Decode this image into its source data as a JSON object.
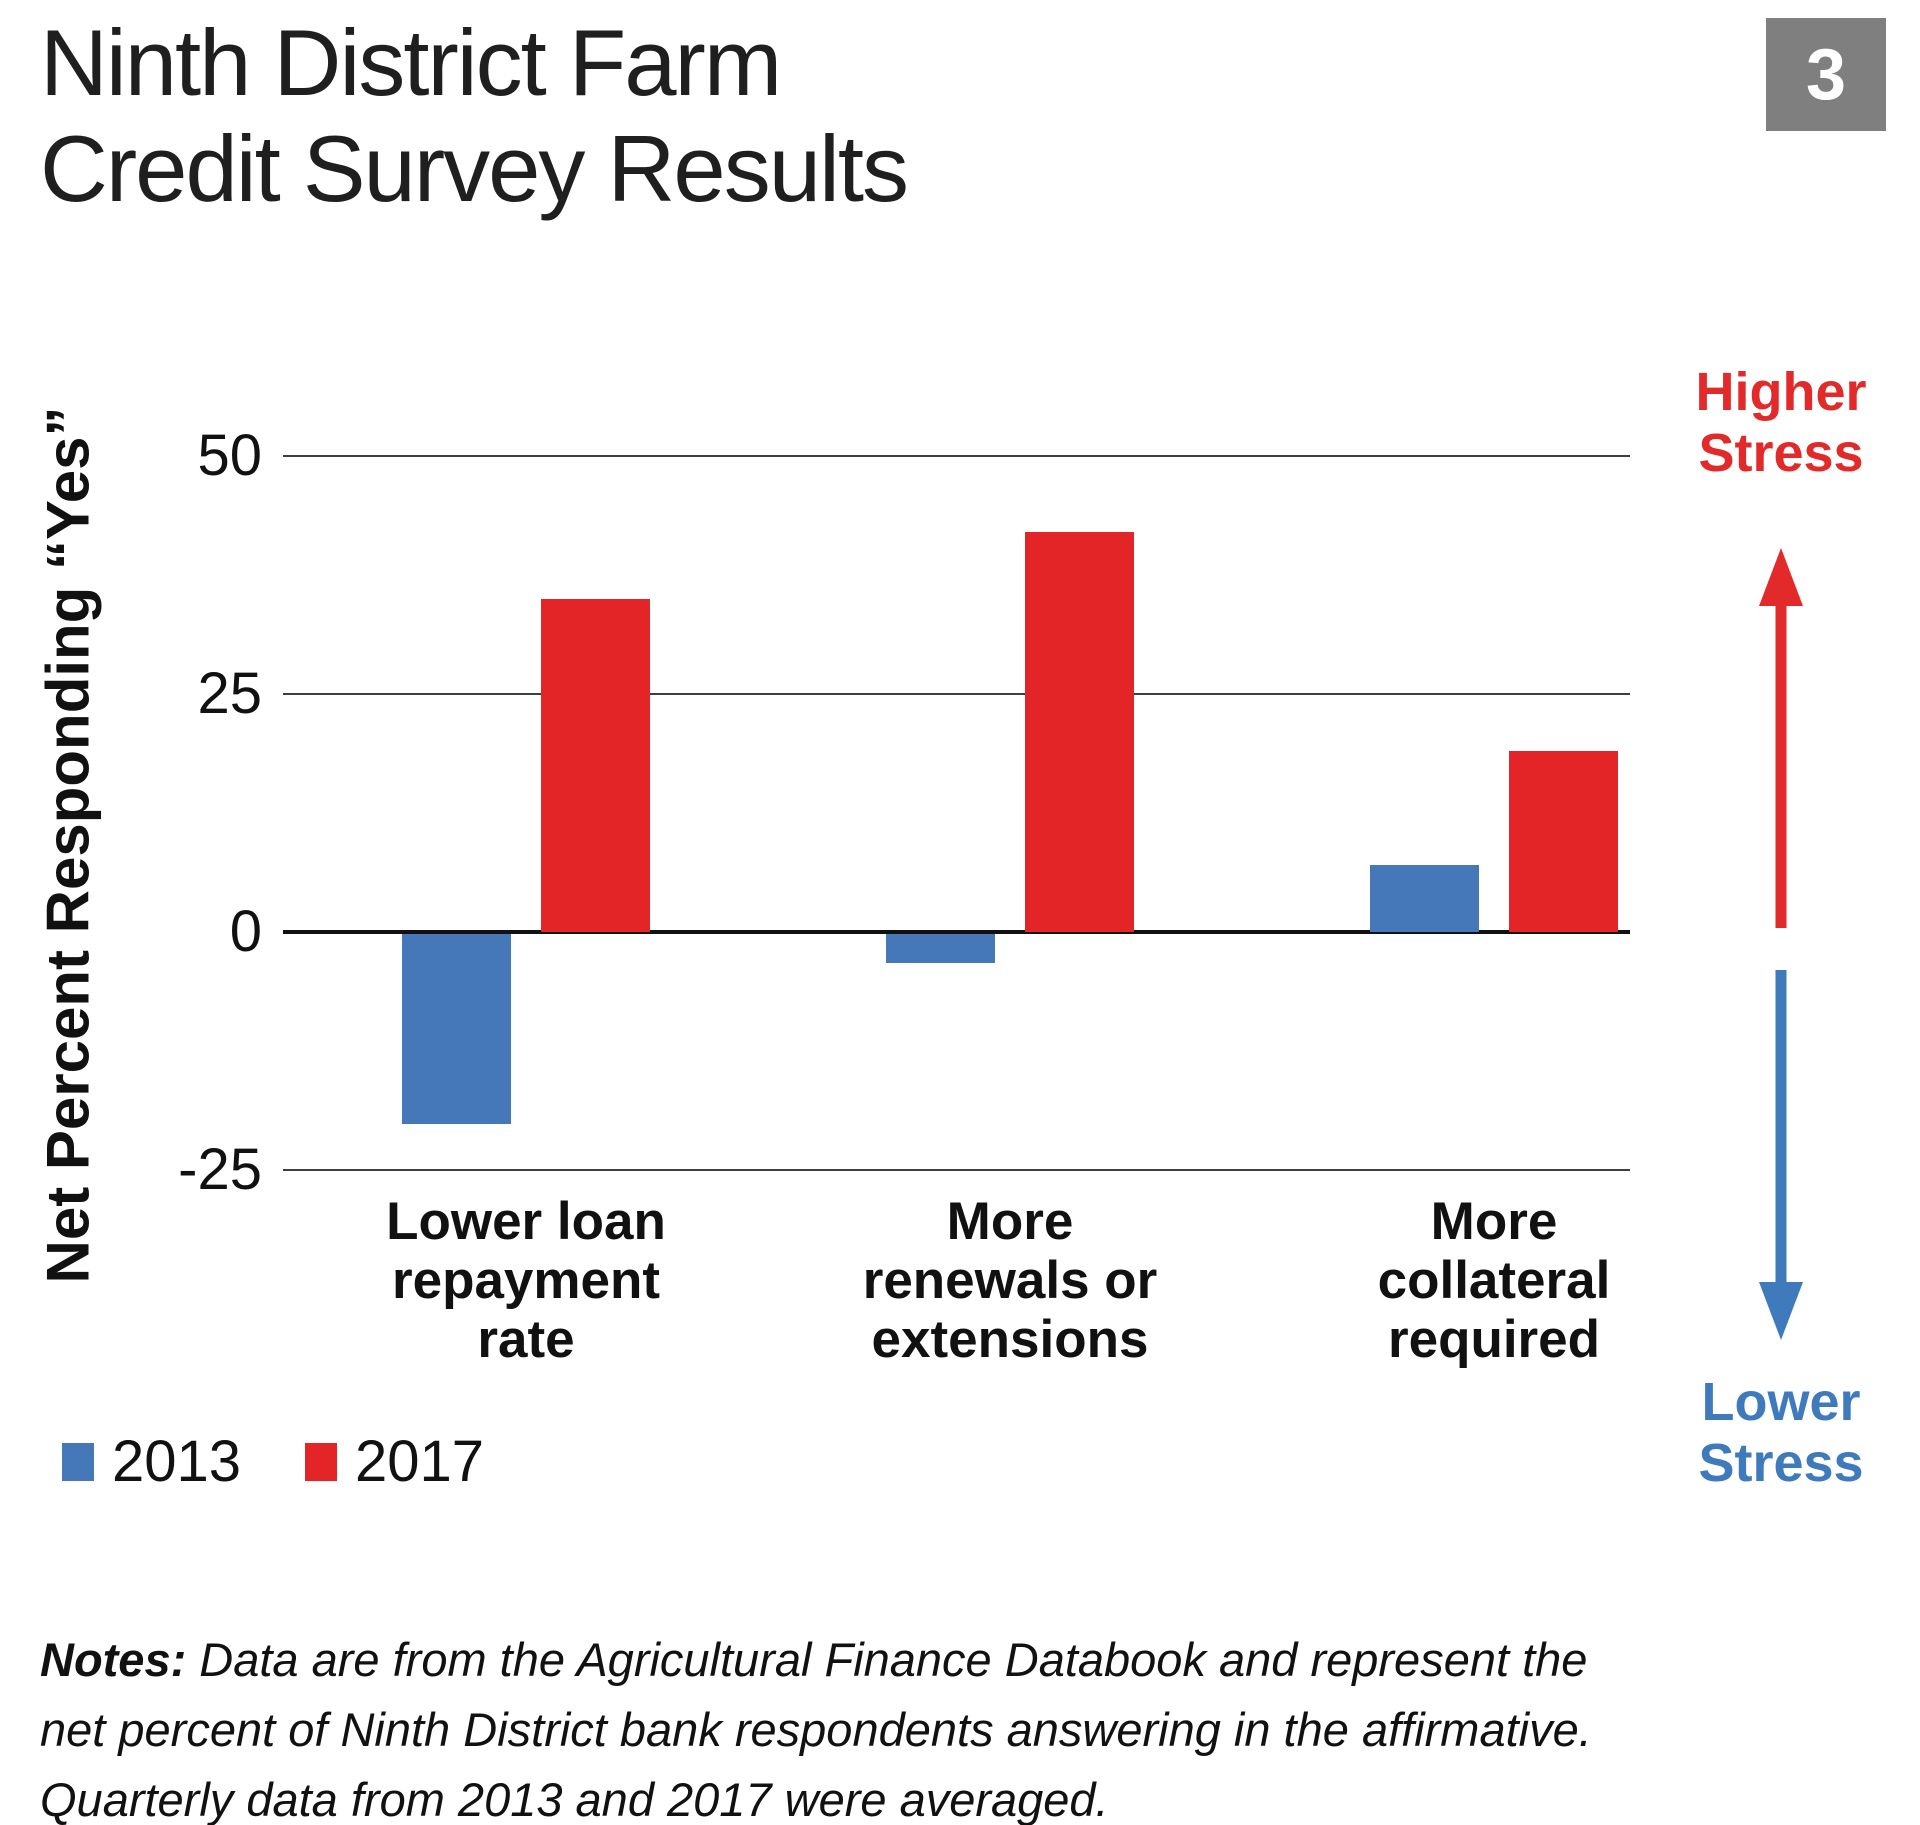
{
  "title": {
    "lines": [
      "Ninth District Farm",
      "Credit Survey Results"
    ]
  },
  "badge": {
    "number": "3",
    "bg": "#7f7f7f"
  },
  "chart_data": {
    "type": "bar",
    "title": "Ninth District Farm Credit Survey Results",
    "ylabel": "Net Percent Responding “Yes”",
    "xlabel": "",
    "ylim": [
      -25,
      55
    ],
    "grid": true,
    "legend_position": "bottom-left",
    "yticks": [
      {
        "label": "50",
        "value": 50
      },
      {
        "label": "25",
        "value": 25
      },
      {
        "label": "0",
        "value": 0
      },
      {
        "label": "-25",
        "value": -25
      }
    ],
    "categories": [
      {
        "label": "Lower loan repayment rate",
        "lines": [
          "Lower loan",
          "repayment",
          "rate"
        ]
      },
      {
        "label": "More renewals or extensions",
        "lines": [
          "More",
          "renewals or",
          "extensions"
        ]
      },
      {
        "label": "More collateral required",
        "lines": [
          "More",
          "collateral",
          "required"
        ]
      }
    ],
    "series": [
      {
        "name": "2013",
        "color": "#4478b8",
        "values": [
          -20,
          -3,
          7
        ]
      },
      {
        "name": "2017",
        "color": "#e42528",
        "values": [
          35,
          42,
          19
        ]
      }
    ]
  },
  "annotations": {
    "higher": {
      "label": "Higher Stress",
      "color": "#e32a2a"
    },
    "lower": {
      "label": "Lower Stress",
      "color": "#3f7abc"
    }
  },
  "notes": {
    "prefix": "Notes:",
    "text": "Data are from the Agricultural Finance Databook and represent the net percent of Ninth District bank respondents answering in the affirmative. Quarterly data from 2013 and 2017 were averaged."
  }
}
